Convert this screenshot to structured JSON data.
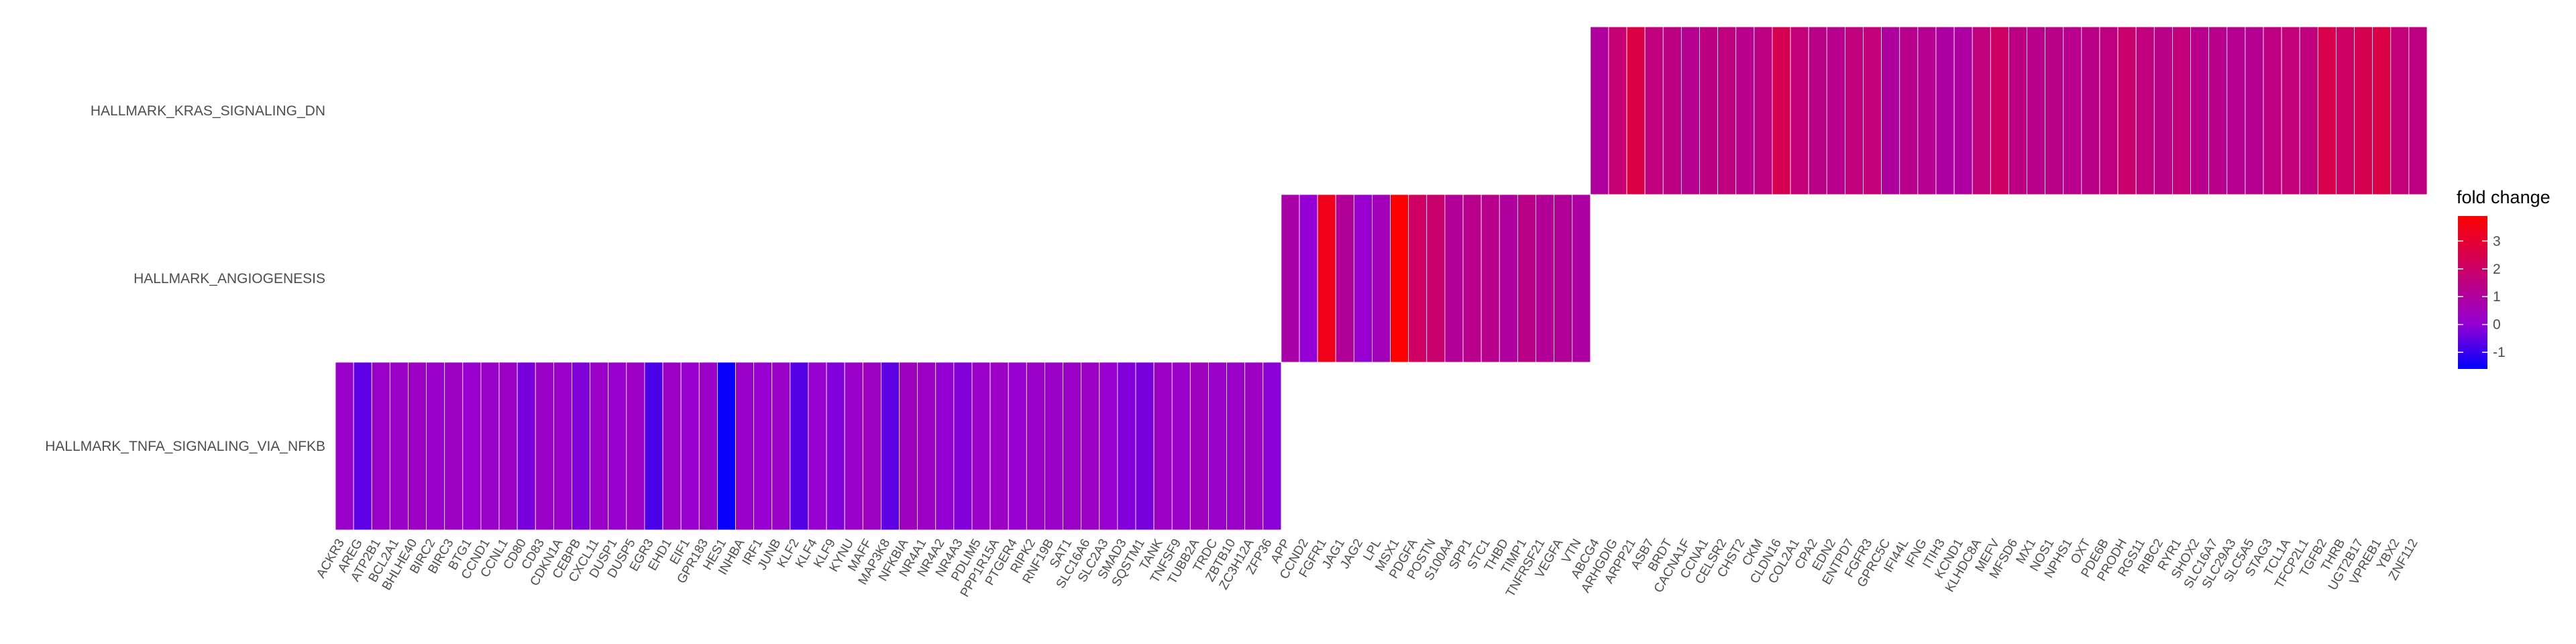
{
  "chart_data": {
    "type": "heatmap",
    "colors": {
      "low": "#0000ff",
      "mid": "#9400d3",
      "high": "#ff0000"
    },
    "legend": {
      "title": "fold change",
      "ticks": [
        3,
        2,
        1,
        0,
        -1
      ],
      "min": -1.6,
      "max": 3.9,
      "placement": "right"
    },
    "grid": false,
    "rows": [
      {
        "name": "HALLMARK_TNFA_SIGNALING_VIA_NFKB",
        "genes": [
          "ACKR3",
          "AREG",
          "ATP2B1",
          "BCL2A1",
          "BHLHE40",
          "BIRC2",
          "BIRC3",
          "BTG1",
          "CCND1",
          "CCNL1",
          "CD80",
          "CD83",
          "CDKN1A",
          "CEBPB",
          "CXCL11",
          "DUSP1",
          "DUSP5",
          "EGR3",
          "EHD1",
          "EIF1",
          "GPR183",
          "HES1",
          "INHBA",
          "IRF1",
          "JUNB",
          "KLF2",
          "KLF4",
          "KLF9",
          "KYNU",
          "MAFF",
          "MAP3K8",
          "NFKBIA",
          "NR4A1",
          "NR4A2",
          "NR4A3",
          "PDLIM5",
          "PPP1R15A",
          "PTGER4",
          "RIPK2",
          "RNF19B",
          "SAT1",
          "SLC16A6",
          "SLC2A3",
          "SMAD3",
          "SQSTM1",
          "TANK",
          "TNFSF9",
          "TUBB2A",
          "TRDC",
          "ZBTB10",
          "ZC3H12A",
          "ZFP36"
        ],
        "values": [
          0.2,
          -0.6,
          0.2,
          0.2,
          0.3,
          0.2,
          0.3,
          0.1,
          0.2,
          0.3,
          -0.3,
          0.2,
          0.2,
          -0.2,
          0.2,
          0.1,
          0.3,
          -0.8,
          0.3,
          0.1,
          0.2,
          -1.5,
          0.2,
          0.1,
          0.2,
          -0.7,
          0.1,
          -0.2,
          0.2,
          0.3,
          -0.6,
          0.4,
          0.3,
          0.0,
          -0.2,
          0.2,
          0.3,
          0.1,
          0.2,
          0.2,
          0.2,
          0.3,
          0.1,
          -0.2,
          -0.3,
          0.3,
          0.2,
          0.4,
          0.2,
          0.2,
          0.3,
          -0.1
        ]
      },
      {
        "name": "HALLMARK_ANGIOGENESIS",
        "genes": [
          "APP",
          "CCND2",
          "FGFR1",
          "JAG1",
          "JAG2",
          "LPL",
          "MSX1",
          "PDGFA",
          "POSTN",
          "S100A4",
          "SPP1",
          "STC1",
          "THBD",
          "TIMP1",
          "TNFRSF21",
          "VEGFA",
          "VTN"
        ],
        "values": [
          0.8,
          0.0,
          3.4,
          1.1,
          0.1,
          0.5,
          3.9,
          2.1,
          1.9,
          1.1,
          1.3,
          1.3,
          1.0,
          1.4,
          1.1,
          1.1,
          0.9
        ]
      },
      {
        "name": "HALLMARK_KRAS_SIGNALING_DN",
        "genes": [
          "ABCG4",
          "ARHGDIG",
          "ARPP21",
          "ASB7",
          "BRDT",
          "CACNA1F",
          "CCNA1",
          "CELSR2",
          "CHST2",
          "CKM",
          "CLDN16",
          "COL2A1",
          "CPA2",
          "EDN2",
          "ENTPD7",
          "FGFR3",
          "GPRC5C",
          "IFI44L",
          "IFNG",
          "ITIH3",
          "KCND1",
          "KLHDC8A",
          "MEFV",
          "MFSD6",
          "MX1",
          "NOS1",
          "NPHS1",
          "OXT",
          "PDE6B",
          "PRODH",
          "RGS11",
          "RIBC2",
          "RYR1",
          "SHOX2",
          "SLC16A7",
          "SLC29A3",
          "SLC5A5",
          "STAG3",
          "TCL1A",
          "TFCP2L1",
          "TGFB2",
          "THRB",
          "UGT2B17",
          "VPREB1",
          "YBX2",
          "ZNF112"
        ],
        "values": [
          1.0,
          1.8,
          2.6,
          1.6,
          1.5,
          1.2,
          1.5,
          1.6,
          1.3,
          1.5,
          2.4,
          1.7,
          1.4,
          1.3,
          1.6,
          1.7,
          1.0,
          1.3,
          1.2,
          0.9,
          0.9,
          1.6,
          2.1,
          1.5,
          1.3,
          1.4,
          1.3,
          1.4,
          1.5,
          1.9,
          1.6,
          1.4,
          1.7,
          1.3,
          1.3,
          1.2,
          1.2,
          1.5,
          1.7,
          1.6,
          2.5,
          2.1,
          2.4,
          2.6,
          1.7,
          1.5
        ]
      }
    ]
  }
}
